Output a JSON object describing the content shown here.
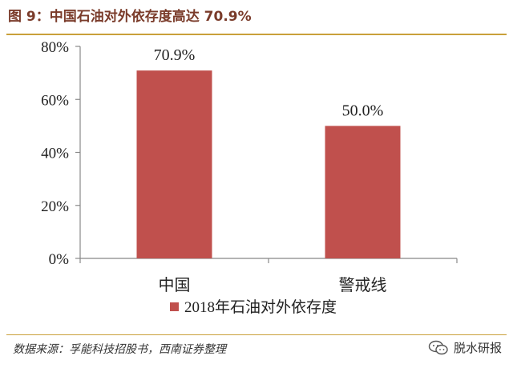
{
  "figure": {
    "title": "图 9：中国石油对外依存度高达 70.9%",
    "source": "数据来源：孚能科技招股书，西南证券整理",
    "watermark": "脱水研报",
    "bar_color": "#c0504d",
    "title_color": "#7a3b2a",
    "rule_color": "#c9a03a"
  },
  "chart_data": {
    "type": "bar",
    "categories": [
      "中国",
      "警戒线"
    ],
    "series": [
      {
        "name": "2018年石油对外依存度",
        "values": [
          70.9,
          50.0
        ]
      }
    ],
    "data_labels": [
      "70.9%",
      "50.0%"
    ],
    "ylim": [
      0,
      80
    ],
    "yticks": [
      0,
      20,
      40,
      60,
      80
    ],
    "ytick_labels": [
      "0%",
      "20%",
      "40%",
      "60%",
      "80%"
    ],
    "legend_position": "bottom",
    "grid": false
  }
}
